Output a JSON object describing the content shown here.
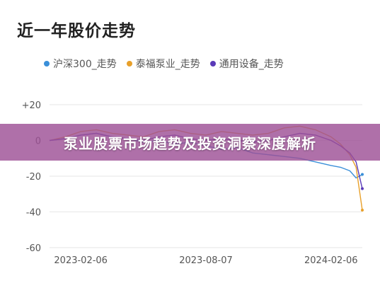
{
  "banner": {
    "text": "泵业股票市场趋势及投资洞察深度解析"
  },
  "chart_data": {
    "type": "line",
    "title": "近一年股价走势",
    "ylim": [
      -60,
      20
    ],
    "yticks": [
      20,
      0,
      -20,
      -40,
      -60
    ],
    "ytick_labels": [
      "+20",
      "0",
      "-20",
      "-40",
      "-60"
    ],
    "xticks": [
      "2023-02-06",
      "2023-08-07",
      "2024-02-06"
    ],
    "legend_position": "top",
    "grid": true,
    "x": [
      0,
      0.05,
      0.1,
      0.15,
      0.2,
      0.25,
      0.3,
      0.35,
      0.4,
      0.45,
      0.5,
      0.55,
      0.6,
      0.65,
      0.7,
      0.75,
      0.8,
      0.85,
      0.9,
      0.93,
      0.96,
      0.98,
      1.0
    ],
    "series": [
      {
        "name": "沪深300_走势",
        "color": "#3a8fd9",
        "values": [
          0,
          1,
          3,
          4,
          2,
          1,
          -1,
          0,
          -2,
          -1,
          -3,
          -5,
          -4,
          -7,
          -8,
          -9,
          -10,
          -12,
          -14,
          -15,
          -17,
          -21,
          -19
        ]
      },
      {
        "name": "泰福泵业_走势",
        "color": "#e8a02a",
        "values": [
          0,
          2,
          5,
          6,
          4,
          3,
          2,
          5,
          6,
          4,
          3,
          5,
          4,
          3,
          4,
          7,
          8,
          6,
          2,
          -2,
          -8,
          -15,
          -39
        ]
      },
      {
        "name": "通用设备_走势",
        "color": "#5a3ab8",
        "values": [
          0,
          1,
          3,
          4,
          2,
          1,
          0,
          2,
          3,
          1,
          0,
          1,
          0,
          -1,
          0,
          2,
          4,
          3,
          0,
          -3,
          -7,
          -12,
          -27
        ]
      }
    ]
  }
}
